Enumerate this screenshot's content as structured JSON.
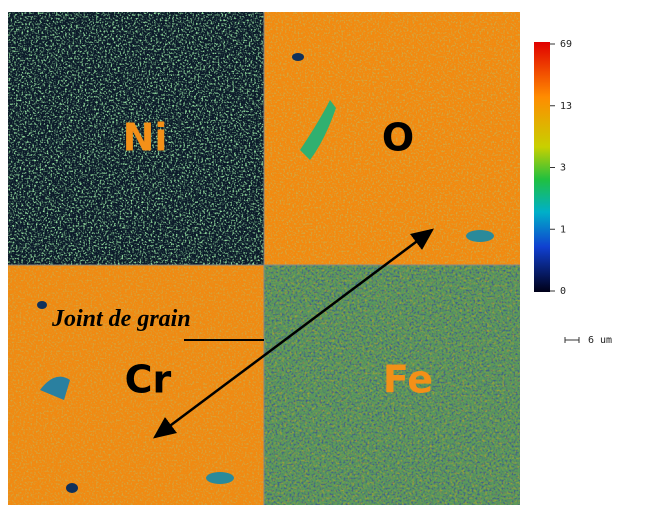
{
  "panels": [
    {
      "label": "Ni"
    },
    {
      "label": "O"
    },
    {
      "label": "Cr"
    },
    {
      "label": "Fe"
    }
  ],
  "colorbar": {
    "ticks": [
      "69",
      "13",
      "3",
      "1",
      "0"
    ]
  },
  "annotation": "Joint de grain",
  "scale_bar": "6 um"
}
